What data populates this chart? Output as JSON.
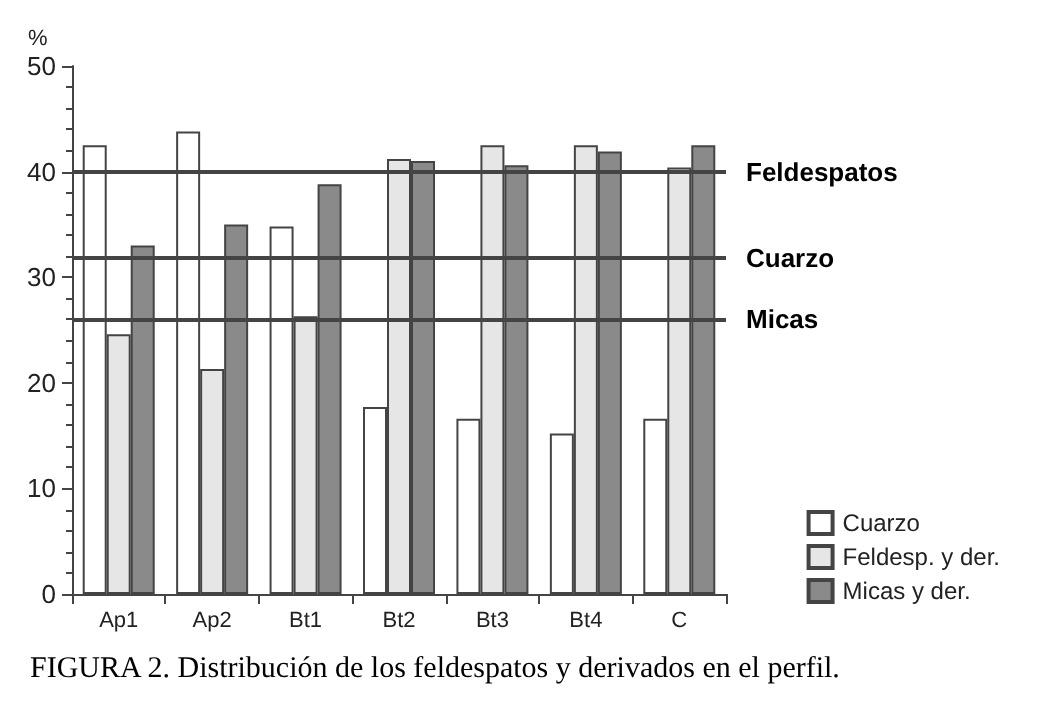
{
  "chart_data": {
    "type": "bar",
    "title": "FIGURA 2. Distribución de los feldespatos y derivados en el perfil.",
    "ylabel": "%",
    "categories": [
      "Ap1",
      "Ap2",
      "Bt1",
      "Bt2",
      "Bt3",
      "Bt4",
      "C"
    ],
    "series": [
      {
        "name": "Cuarzo",
        "color": "#ffffff",
        "values": [
          42.5,
          43.8,
          34.8,
          17.7,
          16.6,
          15.2,
          16.6
        ]
      },
      {
        "name": "Feldesp. y der.",
        "color": "#e6e6e6",
        "values": [
          24.6,
          21.3,
          26.3,
          41.2,
          42.5,
          42.5,
          40.4
        ]
      },
      {
        "name": "Micas y der.",
        "color": "#8a8a8a",
        "values": [
          33.0,
          35.0,
          38.8,
          41.0,
          40.6,
          41.9,
          42.5
        ]
      }
    ],
    "ylim": [
      0,
      50
    ],
    "yticks": [
      0,
      10,
      20,
      30,
      40,
      50
    ],
    "grid": false,
    "legend": "bottom right",
    "ref_lines": [
      {
        "axis": "y",
        "value": 40,
        "label": "Feldespatos",
        "color": "#444444"
      },
      {
        "axis": "y",
        "value": 31.8,
        "label": "Cuarzo",
        "color": "#444444"
      },
      {
        "axis": "y",
        "value": 26,
        "label": "Micas",
        "color": "#444444"
      }
    ]
  }
}
